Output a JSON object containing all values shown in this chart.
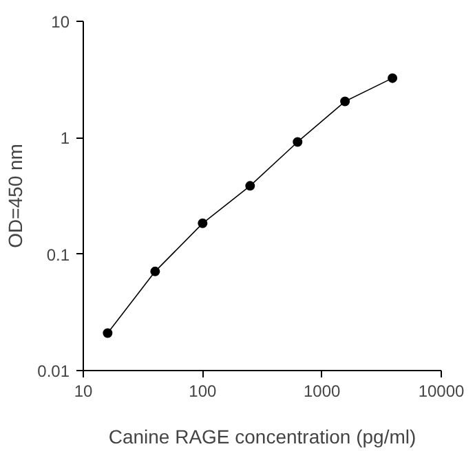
{
  "chart_data": {
    "type": "line",
    "xlabel": "Canine RAGE concentration (pg/ml)",
    "ylabel": "OD=450 nm",
    "log": "xy",
    "marker": "circle",
    "line_style": "solid",
    "grid": false,
    "x": [
      16,
      40,
      100,
      250,
      625,
      1560,
      3900
    ],
    "series": [
      {
        "color": "#000000",
        "values": [
          0.021,
          0.071,
          0.184,
          0.386,
          0.92,
          2.05,
          3.25
        ]
      }
    ],
    "xlim": [
      10,
      10000
    ],
    "xticks": [
      10,
      100,
      1000,
      10000
    ],
    "ylim": [
      0.01,
      10
    ],
    "yticks": [
      0.01,
      0.1,
      1,
      10
    ]
  }
}
